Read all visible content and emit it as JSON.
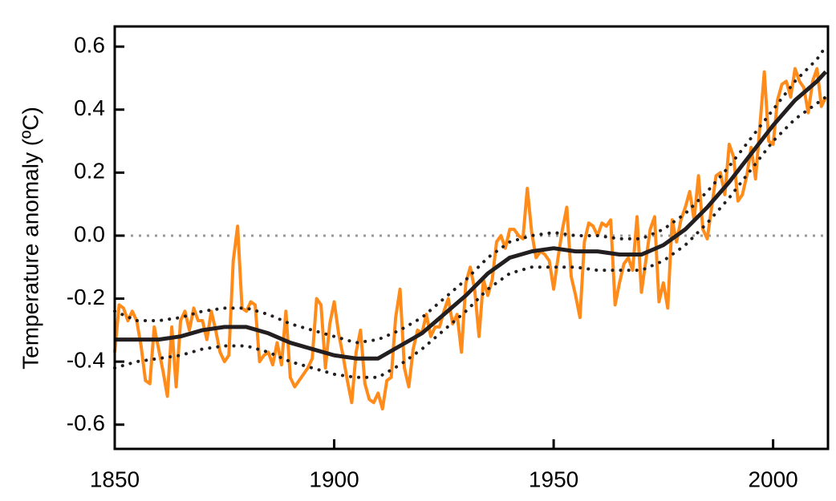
{
  "chart_data": {
    "type": "line",
    "y_label": "Temperature anomaly (ºC)",
    "xlim": [
      1850,
      2012.5
    ],
    "ylim": [
      -0.677,
      0.664
    ],
    "xticks": [
      1850,
      1900,
      1950,
      2000
    ],
    "yticks": [
      0.6,
      0.4,
      0.2,
      {
        "value": 0,
        "label": "0.0"
      },
      -0.2,
      -0.4,
      -0.6
    ],
    "reference_line": {
      "value": 0,
      "color": "#999999"
    },
    "series": [
      {
        "color": "#ff8c1a",
        "style": "solid",
        "width": 4,
        "x": [
          1850,
          1851,
          1852,
          1853,
          1854,
          1855,
          1856,
          1857,
          1858,
          1859,
          1860,
          1861,
          1862,
          1863,
          1864,
          1865,
          1866,
          1867,
          1868,
          1869,
          1870,
          1871,
          1872,
          1873,
          1874,
          1875,
          1876,
          1877,
          1878,
          1879,
          1880,
          1881,
          1882,
          1883,
          1884,
          1885,
          1886,
          1887,
          1888,
          1889,
          1890,
          1891,
          1892,
          1893,
          1894,
          1895,
          1896,
          1897,
          1898,
          1899,
          1900,
          1901,
          1902,
          1903,
          1904,
          1905,
          1906,
          1907,
          1908,
          1909,
          1910,
          1911,
          1912,
          1913,
          1914,
          1915,
          1916,
          1917,
          1918,
          1919,
          1920,
          1921,
          1922,
          1923,
          1924,
          1925,
          1926,
          1927,
          1928,
          1929,
          1930,
          1931,
          1932,
          1933,
          1934,
          1935,
          1936,
          1937,
          1938,
          1939,
          1940,
          1941,
          1942,
          1943,
          1944,
          1945,
          1946,
          1947,
          1948,
          1949,
          1950,
          1951,
          1952,
          1953,
          1954,
          1955,
          1956,
          1957,
          1958,
          1959,
          1960,
          1961,
          1962,
          1963,
          1964,
          1965,
          1966,
          1967,
          1968,
          1969,
          1970,
          1971,
          1972,
          1973,
          1974,
          1975,
          1976,
          1977,
          1978,
          1979,
          1980,
          1981,
          1982,
          1983,
          1984,
          1985,
          1986,
          1987,
          1988,
          1989,
          1990,
          1991,
          1992,
          1993,
          1994,
          1995,
          1996,
          1997,
          1998,
          1999,
          2000,
          2001,
          2002,
          2003,
          2004,
          2005,
          2006,
          2007,
          2008,
          2009,
          2010,
          2011,
          2012
        ],
        "values": [
          -0.37,
          -0.22,
          -0.23,
          -0.27,
          -0.24,
          -0.27,
          -0.35,
          -0.46,
          -0.47,
          -0.29,
          -0.36,
          -0.43,
          -0.51,
          -0.29,
          -0.48,
          -0.27,
          -0.24,
          -0.3,
          -0.23,
          -0.27,
          -0.27,
          -0.33,
          -0.24,
          -0.3,
          -0.37,
          -0.4,
          -0.38,
          -0.08,
          0.03,
          -0.23,
          -0.24,
          -0.21,
          -0.22,
          -0.4,
          -0.38,
          -0.37,
          -0.41,
          -0.34,
          -0.41,
          -0.24,
          -0.45,
          -0.48,
          -0.46,
          -0.44,
          -0.42,
          -0.39,
          -0.2,
          -0.22,
          -0.42,
          -0.28,
          -0.21,
          -0.31,
          -0.38,
          -0.46,
          -0.53,
          -0.37,
          -0.3,
          -0.47,
          -0.52,
          -0.53,
          -0.5,
          -0.55,
          -0.46,
          -0.45,
          -0.26,
          -0.17,
          -0.42,
          -0.48,
          -0.36,
          -0.3,
          -0.31,
          -0.25,
          -0.32,
          -0.29,
          -0.29,
          -0.24,
          -0.2,
          -0.28,
          -0.25,
          -0.37,
          -0.15,
          -0.1,
          -0.17,
          -0.32,
          -0.14,
          -0.19,
          -0.14,
          -0.02,
          0.0,
          -0.04,
          0.02,
          0.02,
          0.0,
          -0.01,
          0.15,
          0.01,
          -0.07,
          -0.05,
          -0.06,
          -0.08,
          -0.17,
          -0.07,
          0.02,
          0.09,
          -0.13,
          -0.19,
          -0.26,
          -0.02,
          0.04,
          0.03,
          0.0,
          0.04,
          0.03,
          0.05,
          -0.22,
          -0.15,
          -0.09,
          -0.07,
          -0.11,
          0.06,
          -0.18,
          -0.08,
          0.02,
          0.06,
          -0.21,
          -0.15,
          -0.23,
          0.05,
          -0.02,
          0.05,
          0.09,
          0.14,
          0.05,
          0.19,
          0.02,
          -0.01,
          0.09,
          0.19,
          0.2,
          0.13,
          0.29,
          0.25,
          0.11,
          0.13,
          0.19,
          0.28,
          0.18,
          0.35,
          0.52,
          0.3,
          0.29,
          0.43,
          0.48,
          0.49,
          0.44,
          0.53,
          0.49,
          0.47,
          0.39,
          0.49,
          0.53,
          0.41,
          0.44
        ]
      },
      {
        "color": "#231f20",
        "style": "solid",
        "width": 5,
        "x": [
          1850,
          1855,
          1860,
          1865,
          1870,
          1875,
          1880,
          1885,
          1890,
          1895,
          1900,
          1905,
          1910,
          1915,
          1920,
          1925,
          1930,
          1935,
          1940,
          1945,
          1950,
          1955,
          1960,
          1965,
          1970,
          1975,
          1980,
          1985,
          1990,
          1995,
          2000,
          2005,
          2010,
          2012
        ],
        "values": [
          -0.33,
          -0.33,
          -0.33,
          -0.32,
          -0.3,
          -0.29,
          -0.29,
          -0.31,
          -0.34,
          -0.36,
          -0.38,
          -0.39,
          -0.39,
          -0.35,
          -0.31,
          -0.25,
          -0.19,
          -0.12,
          -0.07,
          -0.05,
          -0.04,
          -0.05,
          -0.05,
          -0.06,
          -0.06,
          -0.03,
          0.02,
          0.09,
          0.17,
          0.26,
          0.35,
          0.43,
          0.49,
          0.52
        ]
      },
      {
        "color": "#231f20",
        "style": "dotted",
        "width": 4,
        "x": [
          1850,
          1855,
          1860,
          1865,
          1870,
          1875,
          1880,
          1885,
          1890,
          1895,
          1900,
          1905,
          1910,
          1915,
          1920,
          1925,
          1930,
          1935,
          1940,
          1945,
          1950,
          1955,
          1960,
          1965,
          1970,
          1975,
          1980,
          1985,
          1990,
          1995,
          2000,
          2005,
          2010,
          2012
        ],
        "values": [
          -0.24,
          -0.27,
          -0.27,
          -0.26,
          -0.24,
          -0.23,
          -0.23,
          -0.25,
          -0.28,
          -0.3,
          -0.32,
          -0.34,
          -0.33,
          -0.3,
          -0.26,
          -0.2,
          -0.14,
          -0.07,
          -0.02,
          0.0,
          0.01,
          0.0,
          0.0,
          -0.01,
          -0.01,
          0.02,
          0.07,
          0.14,
          0.22,
          0.31,
          0.4,
          0.49,
          0.56,
          0.6
        ]
      },
      {
        "color": "#231f20",
        "style": "dotted",
        "width": 4,
        "x": [
          1850,
          1855,
          1860,
          1865,
          1870,
          1875,
          1880,
          1885,
          1890,
          1895,
          1900,
          1905,
          1910,
          1915,
          1920,
          1925,
          1930,
          1935,
          1940,
          1945,
          1950,
          1955,
          1960,
          1965,
          1970,
          1975,
          1980,
          1985,
          1990,
          1995,
          2000,
          2005,
          2010,
          2012
        ],
        "values": [
          -0.42,
          -0.4,
          -0.39,
          -0.38,
          -0.36,
          -0.35,
          -0.35,
          -0.37,
          -0.4,
          -0.42,
          -0.44,
          -0.45,
          -0.45,
          -0.41,
          -0.36,
          -0.3,
          -0.24,
          -0.17,
          -0.12,
          -0.1,
          -0.1,
          -0.1,
          -0.11,
          -0.11,
          -0.11,
          -0.08,
          -0.03,
          0.04,
          0.12,
          0.21,
          0.3,
          0.37,
          0.42,
          0.44
        ]
      }
    ]
  }
}
